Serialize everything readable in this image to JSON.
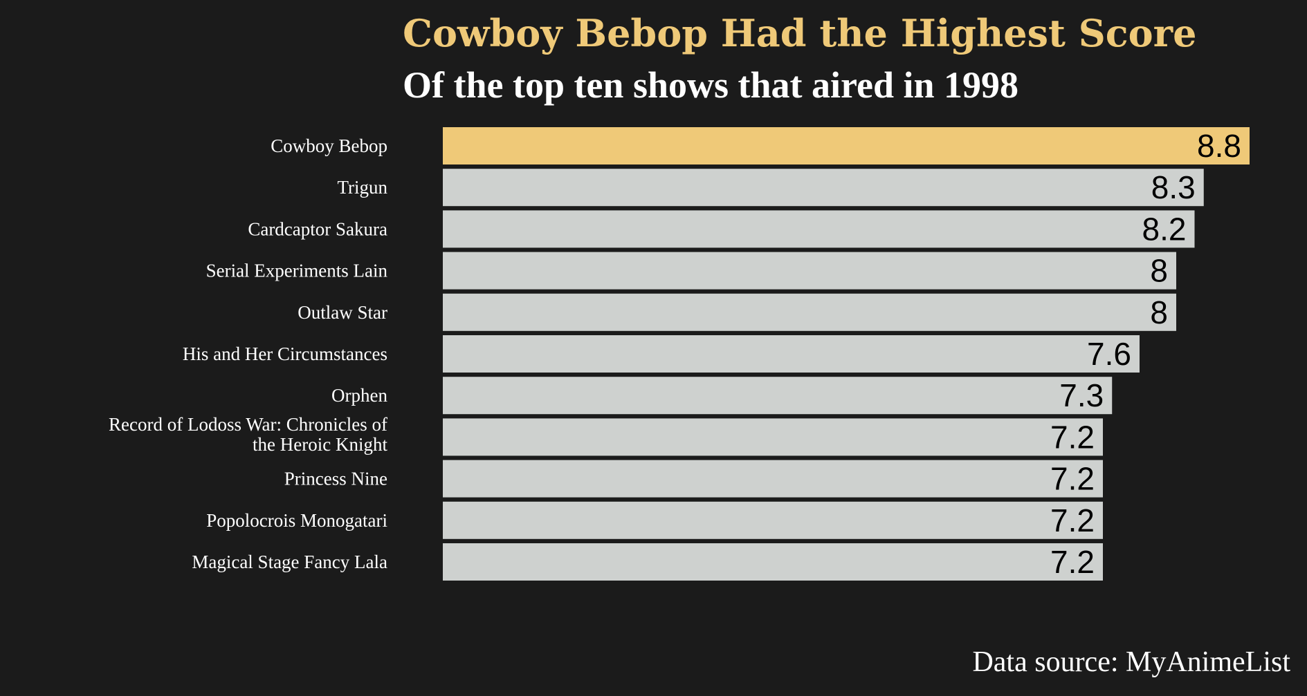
{
  "chart_data": {
    "type": "bar",
    "orientation": "horizontal",
    "title": "Cowboy Bebop Had the Highest Score",
    "subtitle": "Of the top ten shows that aired in 1998",
    "categories": [
      "Cowboy Bebop",
      "Trigun",
      "Cardcaptor Sakura",
      "Serial Experiments Lain",
      "Outlaw Star",
      "His and Her Circumstances",
      "Orphen",
      "Record of Lodoss War: Chronicles of the Heroic Knight",
      "Princess Nine",
      "Popolocrois Monogatari",
      "Magical Stage Fancy Lala"
    ],
    "values": [
      8.8,
      8.3,
      8.2,
      8,
      8,
      7.6,
      7.3,
      7.2,
      7.2,
      7.2,
      7.2
    ],
    "value_labels": [
      "8.8",
      "8.3",
      "8.2",
      "8",
      "8",
      "7.6",
      "7.3",
      "7.2",
      "7.2",
      "7.2",
      "7.2"
    ],
    "highlight_index": 0,
    "xlim": [
      0,
      8.8
    ],
    "grid": false,
    "legend": "none",
    "xlabel": "",
    "ylabel": ""
  },
  "source": "Data source: MyAnimeList",
  "colors": {
    "background": "#1b1b1b",
    "highlight": "#efc978",
    "bar": "#ced1cf",
    "title": "#efc978",
    "text": "#ffffff",
    "value_label": "#000000"
  }
}
